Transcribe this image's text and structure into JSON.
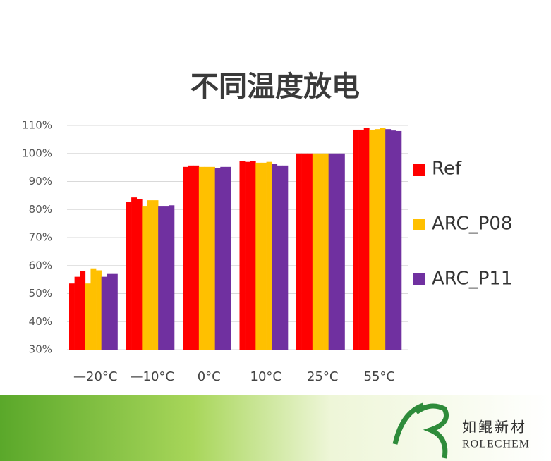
{
  "chart_data": {
    "type": "bar",
    "title": "不同温度放电",
    "categories": [
      "—20°C",
      "—10°C",
      "0°C",
      "10°C",
      "25°C",
      "55°C"
    ],
    "series": [
      {
        "name": "Ref",
        "color": "#ff0000",
        "values": [
          [
            53.6,
            56,
            58
          ],
          [
            82.8,
            84.3,
            83.8
          ],
          [
            95.2,
            95.7,
            95.7
          ],
          [
            97.2,
            97,
            97.2
          ],
          [
            100,
            100,
            100
          ],
          [
            108.5,
            108.5,
            109
          ]
        ]
      },
      {
        "name": "ARC_P08",
        "color": "#ffc000",
        "values": [
          [
            53.6,
            59,
            58.3
          ],
          [
            81.3,
            83.3,
            83.3
          ],
          [
            95.2,
            95.2,
            95.2
          ],
          [
            96.7,
            96.7,
            97
          ],
          [
            100,
            100,
            100
          ],
          [
            108.5,
            108.7,
            109.2
          ]
        ]
      },
      {
        "name": "ARC_P11",
        "color": "#7030a0",
        "values": [
          [
            56,
            57,
            57
          ],
          [
            81.3,
            81.3,
            81.5
          ],
          [
            94.7,
            95.2,
            95.2
          ],
          [
            96.2,
            95.7,
            95.7
          ],
          [
            100,
            100,
            100
          ],
          [
            108.7,
            108.2,
            108
          ]
        ]
      }
    ],
    "ylim": [
      30,
      110
    ],
    "yticks": [
      {
        "value": 30,
        "label": "30%"
      },
      {
        "value": 40,
        "label": "40%"
      },
      {
        "value": 50,
        "label": "50%"
      },
      {
        "value": 60,
        "label": "60%"
      },
      {
        "value": 70,
        "label": "70%"
      },
      {
        "value": 80,
        "label": "80%"
      },
      {
        "value": 90,
        "label": "90%"
      },
      {
        "value": 100,
        "label": "100%"
      },
      {
        "value": 110,
        "label": "110%"
      }
    ],
    "grid": true
  },
  "logo": {
    "name_cn": "如鲲新材",
    "name_en": "ROLECHEM"
  }
}
